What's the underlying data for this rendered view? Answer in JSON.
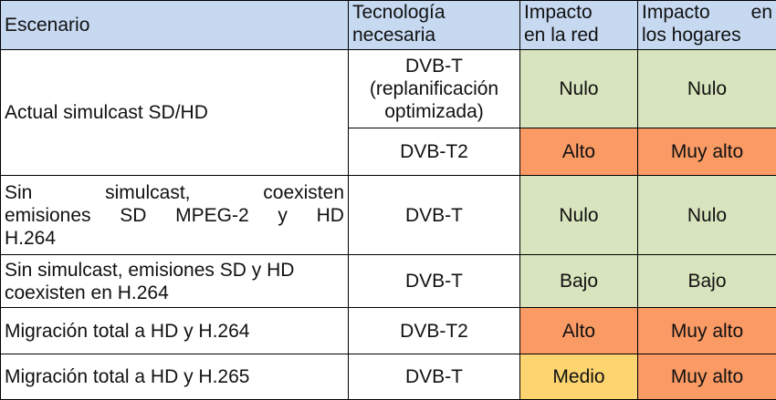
{
  "headers": {
    "escenario": "Escenario",
    "tecnologia": [
      "Tecnología",
      "necesaria"
    ],
    "impacto_red": [
      "Impacto",
      "en la red"
    ],
    "impacto_hogares_line1": [
      "Impacto",
      "en"
    ],
    "impacto_hogares_line2": "los hogares"
  },
  "rows": [
    {
      "escenario": "Actual simulcast SD/HD",
      "tecnologia": [
        "DVB-T",
        "(replanificación",
        "optimizada)"
      ],
      "impacto_red": "Nulo",
      "impacto_hogares": "Nulo"
    },
    {
      "tecnologia": "DVB-T2",
      "impacto_red": "Alto",
      "impacto_hogares": "Muy alto"
    },
    {
      "escenario_line1": [
        "Sin",
        "simulcast,",
        "coexisten"
      ],
      "escenario_line2": [
        "emisiones",
        "SD",
        "MPEG-2",
        "y",
        "HD"
      ],
      "escenario_line3": "H.264",
      "tecnologia": "DVB-T",
      "impacto_red": "Nulo",
      "impacto_hogares": "Nulo"
    },
    {
      "escenario": [
        "Sin simulcast, emisiones SD y HD",
        "coexisten en H.264"
      ],
      "tecnologia": "DVB-T",
      "impacto_red": "Bajo",
      "impacto_hogares": "Bajo"
    },
    {
      "escenario": "Migración total a HD y H.264",
      "tecnologia": "DVB-T2",
      "impacto_red": "Alto",
      "impacto_hogares": "Muy alto"
    },
    {
      "escenario": "Migración total a HD y H.265",
      "tecnologia": "DVB-T",
      "impacto_red": "Medio",
      "impacto_hogares": "Muy alto"
    }
  ],
  "colors": {
    "header": "#c6d9f1",
    "nulo_bajo": "#d7e4bd",
    "alto": "#fa9a64",
    "medio": "#fcd571"
  }
}
